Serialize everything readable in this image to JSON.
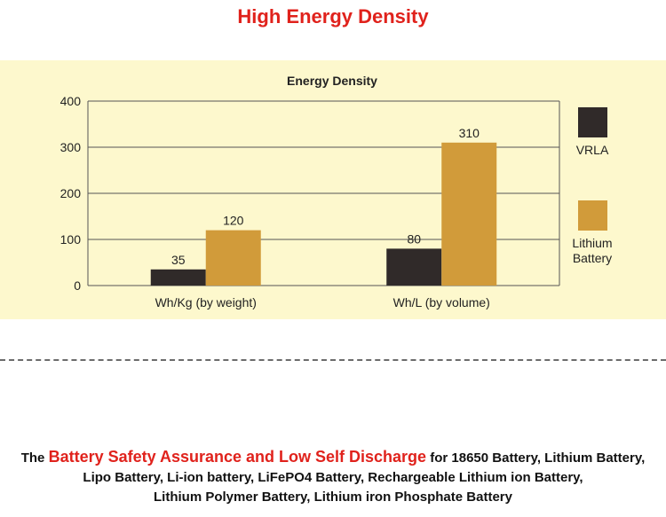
{
  "header": {
    "title": "High Energy Density"
  },
  "chart_data": {
    "type": "bar",
    "title": "Energy Density",
    "categories": [
      "Wh/Kg (by weight)",
      "Wh/L (by volume)"
    ],
    "series": [
      {
        "name": "VRLA",
        "values": [
          35,
          80
        ],
        "color": "#302a29"
      },
      {
        "name": "Lithium Battery",
        "values": [
          120,
          310
        ],
        "color": "#d19b3a"
      }
    ],
    "ylim": [
      0,
      400
    ],
    "yticks": [
      0,
      100,
      200,
      300,
      400
    ],
    "xlabel": "",
    "ylabel": "",
    "grid": true,
    "legend_position": "right",
    "legend_labels": [
      [
        "VRLA"
      ],
      [
        "Lithium",
        "Battery"
      ]
    ]
  },
  "caption": {
    "prefix": "The ",
    "highlight": "Battery Safety Assurance and Low Self Discharge",
    "line1_rest": " for 18650 Battery, Lithium Battery,",
    "line2": "Lipo Battery, Li-ion battery, LiFePO4 Battery, Rechargeable Lithium ion Battery,",
    "line3": "Lithium Polymer Battery, Lithium iron Phosphate Battery"
  },
  "colors": {
    "title_red": "#e0221c",
    "panel_bg": "#fdf8cd",
    "vrla": "#302a29",
    "lithium": "#d19b3a",
    "grid": "#555555"
  }
}
